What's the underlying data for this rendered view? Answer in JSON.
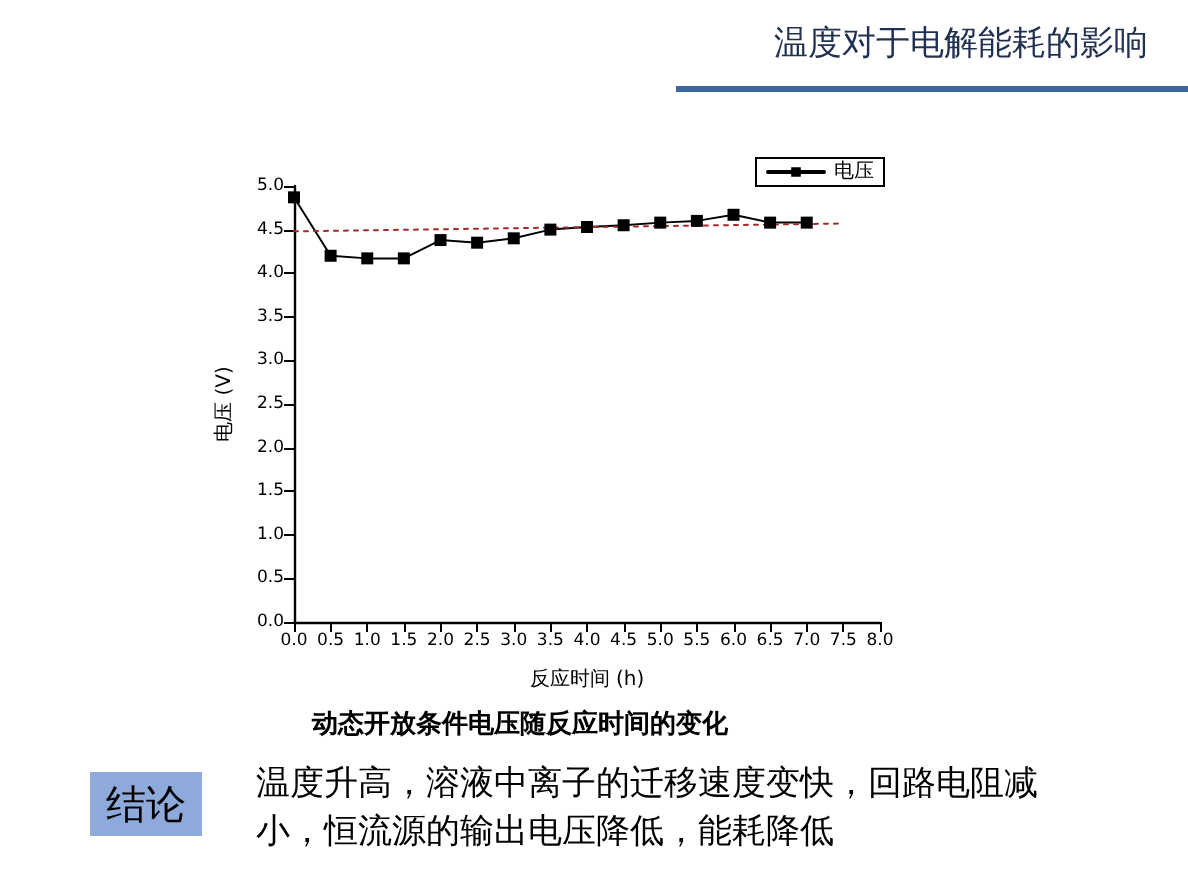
{
  "chart_data": {
    "type": "line",
    "title": "温度对于电解能耗的影响",
    "xlabel": "反应时间 (h)",
    "ylabel": "电压 (V)",
    "annotations": [
      "动态开放条件电压随反应时间的变化",
      "结论",
      "温度升高，溶液中离子的迁移速度变快，回路电阻减小，恒流源的输出电压降低，能耗降低"
    ],
    "x": [
      0,
      0.5,
      1.0,
      1.5,
      2.0,
      2.5,
      3.0,
      3.5,
      4.0,
      4.5,
      5.0,
      5.5,
      6.0,
      6.5,
      7.0
    ],
    "series": [
      {
        "name": "电压",
        "color": "#000000",
        "marker": "square",
        "line_style": "solid",
        "values": [
          4.87,
          4.2,
          4.17,
          4.17,
          4.38,
          4.35,
          4.4,
          4.5,
          4.53,
          4.55,
          4.58,
          4.6,
          4.67,
          4.58,
          4.58
        ]
      },
      {
        "color": "#a52a2a",
        "marker": "none",
        "line_style": "dotted",
        "x": [
          0,
          7.5
        ],
        "values": [
          4.48,
          4.57
        ]
      }
    ],
    "xlim": [
      0,
      8
    ],
    "xticks": [
      {
        "value": 0,
        "label": "0.0"
      },
      0.5,
      {
        "value": 1,
        "label": "1.0"
      },
      1.5,
      {
        "value": 2,
        "label": "2.0"
      },
      2.5,
      {
        "value": 3,
        "label": "3.0"
      },
      3.5,
      {
        "value": 4,
        "label": "4.0"
      },
      4.5,
      {
        "value": 5,
        "label": "5.0"
      },
      5.5,
      {
        "value": 6,
        "label": "6.0"
      },
      6.5,
      {
        "value": 7,
        "label": "7.0"
      },
      7.5,
      {
        "value": 8,
        "label": "8.0"
      }
    ],
    "ylim": [
      0,
      5
    ],
    "yticks": [
      {
        "value": 0,
        "label": "0.0"
      },
      0.5,
      {
        "value": 1,
        "label": "1.0"
      },
      1.5,
      {
        "value": 2,
        "label": "2.0"
      },
      2.5,
      {
        "value": 3,
        "label": "3.0"
      },
      3.5,
      {
        "value": 4,
        "label": "4.0"
      },
      4.5,
      {
        "value": 5,
        "label": "5.0"
      }
    ],
    "grid": false,
    "legend": "top right"
  }
}
